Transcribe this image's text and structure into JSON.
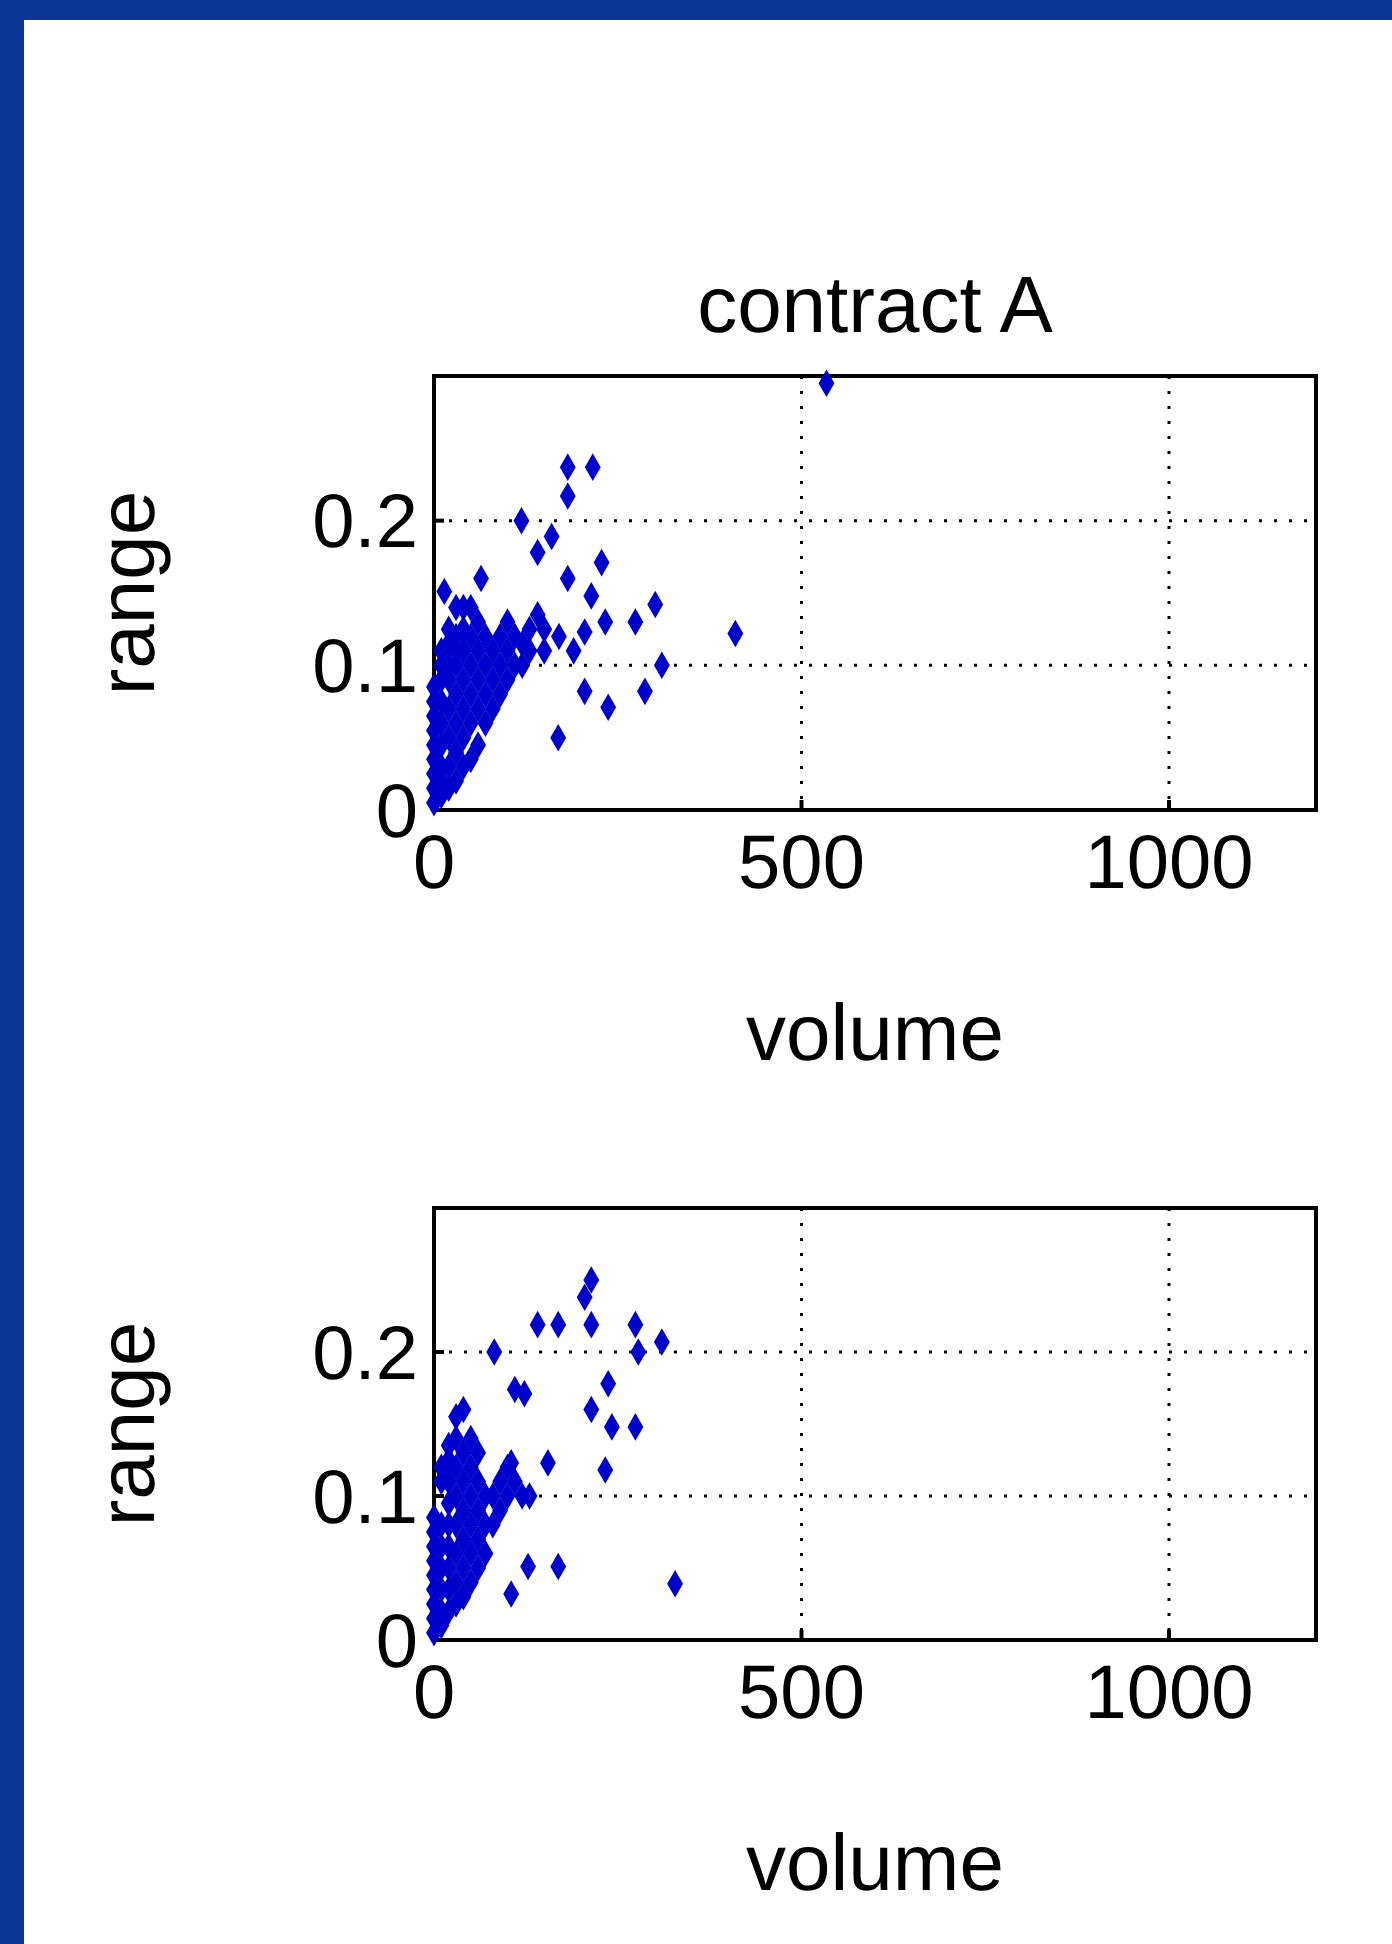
{
  "chart_data": [
    {
      "type": "scatter",
      "title": "contract A",
      "xlabel": "volume",
      "ylabel": "range",
      "xlim": [
        0,
        1200
      ],
      "xticks": [
        0,
        500,
        1000
      ],
      "ylim": [
        0,
        0.3
      ],
      "yticks": [
        0,
        0.1,
        0.2
      ],
      "grid": true,
      "marker": "diamond",
      "series": [
        {
          "color": "#0000cc",
          "x": [
            534,
            182,
            216,
            182,
            119,
            160,
            141,
            228,
            14,
            64,
            182,
            214,
            301,
            274,
            233,
            205,
            410,
            310,
            287,
            205,
            237,
            169,
            141,
            0,
            0,
            0,
            0,
            0,
            0,
            0,
            0,
            0,
            10,
            10,
            10,
            10,
            10,
            10,
            10,
            10,
            10,
            20,
            20,
            20,
            20,
            20,
            20,
            20,
            20,
            30,
            30,
            30,
            30,
            30,
            30,
            30,
            30,
            40,
            40,
            40,
            40,
            40,
            40,
            40,
            50,
            50,
            50,
            50,
            50,
            50,
            60,
            60,
            60,
            60,
            60,
            70,
            70,
            70,
            70,
            80,
            80,
            80,
            90,
            90,
            90,
            100,
            100,
            100,
            110,
            110,
            120,
            120,
            130,
            130,
            150,
            150,
            170,
            190
          ],
          "values": [
            0.295,
            0.237,
            0.237,
            0.217,
            0.2,
            0.189,
            0.178,
            0.171,
            0.151,
            0.16,
            0.16,
            0.148,
            0.142,
            0.13,
            0.13,
            0.123,
            0.122,
            0.1,
            0.082,
            0.082,
            0.071,
            0.05,
            0.135,
            0.005,
            0.015,
            0.025,
            0.035,
            0.045,
            0.055,
            0.065,
            0.075,
            0.085,
            0.01,
            0.02,
            0.03,
            0.045,
            0.06,
            0.075,
            0.09,
            0.1,
            0.11,
            0.015,
            0.03,
            0.05,
            0.07,
            0.09,
            0.1,
            0.115,
            0.125,
            0.02,
            0.04,
            0.06,
            0.08,
            0.1,
            0.11,
            0.12,
            0.14,
            0.03,
            0.05,
            0.07,
            0.09,
            0.11,
            0.125,
            0.14,
            0.035,
            0.06,
            0.08,
            0.1,
            0.12,
            0.14,
            0.045,
            0.07,
            0.09,
            0.11,
            0.13,
            0.06,
            0.08,
            0.1,
            0.12,
            0.07,
            0.09,
            0.11,
            0.08,
            0.1,
            0.12,
            0.09,
            0.11,
            0.13,
            0.1,
            0.12,
            0.1,
            0.115,
            0.11,
            0.125,
            0.11,
            0.125,
            0.12,
            0.11
          ]
        }
      ]
    },
    {
      "type": "scatter",
      "xlabel": "volume",
      "ylabel": "range",
      "xlim": [
        0,
        1200
      ],
      "xticks": [
        0,
        500,
        1000
      ],
      "ylim": [
        0,
        0.3
      ],
      "yticks": [
        0,
        0.1,
        0.2
      ],
      "grid": true,
      "marker": "diamond",
      "series": [
        {
          "color": "#0000cc",
          "x": [
            214,
            205,
            141,
            169,
            214,
            274,
            310,
            278,
            82,
            110,
            123,
            237,
            214,
            242,
            274,
            233,
            105,
            155,
            128,
            169,
            105,
            328,
            0,
            0,
            0,
            0,
            0,
            0,
            0,
            0,
            0,
            10,
            10,
            10,
            10,
            10,
            10,
            10,
            10,
            20,
            20,
            20,
            20,
            20,
            20,
            20,
            20,
            20,
            30,
            30,
            30,
            30,
            30,
            30,
            30,
            30,
            40,
            40,
            40,
            40,
            40,
            40,
            40,
            50,
            50,
            50,
            50,
            50,
            50,
            60,
            60,
            60,
            60,
            60,
            70,
            70,
            70,
            80,
            80,
            90,
            90,
            100,
            100,
            110,
            120,
            130
          ],
          "values": [
            0.25,
            0.238,
            0.219,
            0.219,
            0.219,
            0.219,
            0.207,
            0.2,
            0.2,
            0.174,
            0.171,
            0.178,
            0.16,
            0.148,
            0.148,
            0.118,
            0.123,
            0.123,
            0.051,
            0.051,
            0.032,
            0.039,
            0.005,
            0.015,
            0.025,
            0.035,
            0.045,
            0.055,
            0.065,
            0.075,
            0.085,
            0.01,
            0.02,
            0.035,
            0.05,
            0.065,
            0.08,
            0.11,
            0.12,
            0.02,
            0.035,
            0.05,
            0.065,
            0.08,
            0.095,
            0.11,
            0.125,
            0.135,
            0.025,
            0.04,
            0.06,
            0.08,
            0.1,
            0.12,
            0.14,
            0.155,
            0.03,
            0.05,
            0.07,
            0.09,
            0.11,
            0.13,
            0.16,
            0.04,
            0.06,
            0.08,
            0.1,
            0.12,
            0.14,
            0.05,
            0.07,
            0.09,
            0.11,
            0.13,
            0.06,
            0.08,
            0.1,
            0.08,
            0.1,
            0.09,
            0.11,
            0.1,
            0.12,
            0.11,
            0.1,
            0.1
          ]
        }
      ]
    }
  ]
}
